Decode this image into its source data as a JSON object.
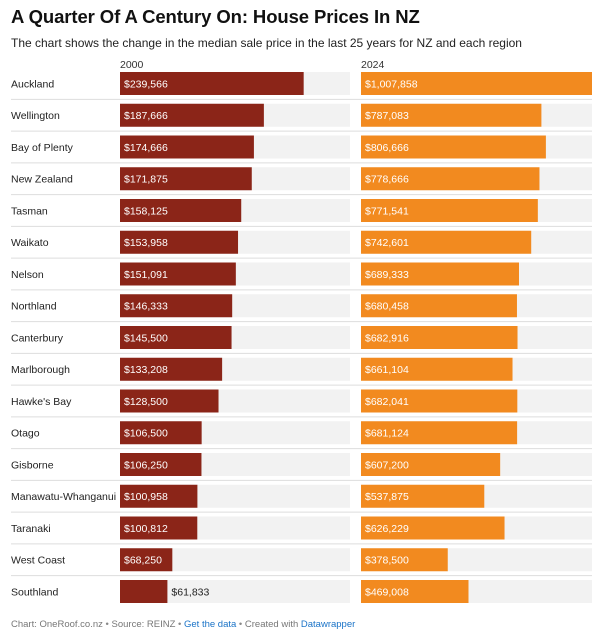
{
  "header": {
    "title": "A Quarter Of A Century On: House Prices In NZ",
    "subtitle": "The chart shows the change in the median sale price in the last 25 years for NZ and each region"
  },
  "columns": {
    "left": "2000",
    "right": "2024"
  },
  "colors": {
    "bar_2000": "#8b2518",
    "bar_2024": "#f28a1f",
    "track": "#f2f2f2",
    "separator": "#dddddd"
  },
  "chart_data": {
    "type": "bar",
    "title": "A Quarter Of A Century On: House Prices In NZ",
    "subtitle": "The chart shows the change in the median sale price in the last 25 years for NZ and each region",
    "categories": [
      "Auckland",
      "Wellington",
      "Bay of Plenty",
      "New Zealand",
      "Tasman",
      "Waikato",
      "Nelson",
      "Northland",
      "Canterbury",
      "Marlborough",
      "Hawke's Bay",
      "Otago",
      "Gisborne",
      "Manawatu-Whanganui",
      "Taranaki",
      "West Coast",
      "Southland"
    ],
    "series": [
      {
        "name": "2000",
        "values": [
          239566,
          187666,
          174666,
          171875,
          158125,
          153958,
          151091,
          146333,
          145500,
          133208,
          128500,
          106500,
          106250,
          100958,
          100812,
          68250,
          61833
        ],
        "labels": [
          "$239,566",
          "$187,666",
          "$174,666",
          "$171,875",
          "$158,125",
          "$153,958",
          "$151,091",
          "$146,333",
          "$145,500",
          "$133,208",
          "$128,500",
          "$106,500",
          "$106,250",
          "$100,958",
          "$100,812",
          "$68,250",
          "$61,833"
        ]
      },
      {
        "name": "2024",
        "values": [
          1007858,
          787083,
          806666,
          778666,
          771541,
          742601,
          689333,
          680458,
          682916,
          661104,
          682041,
          681124,
          607200,
          537875,
          626229,
          378500,
          469008
        ],
        "labels": [
          "$1,007,858",
          "$787,083",
          "$806,666",
          "$778,666",
          "$771,541",
          "$742,601",
          "$689,333",
          "$680,458",
          "$682,916",
          "$661,104",
          "$682,041",
          "$681,124",
          "$607,200",
          "$537,875",
          "$626,229",
          "$378,500",
          "$469,008"
        ]
      }
    ]
  },
  "footer": {
    "chart_label": "Chart: OneRoof.co.nz",
    "sep1": " • ",
    "source": "Source: REINZ",
    "sep2": " • ",
    "get_data": "Get the data",
    "sep3": " • ",
    "created_with": "Created with ",
    "tool": "Datawrapper"
  }
}
